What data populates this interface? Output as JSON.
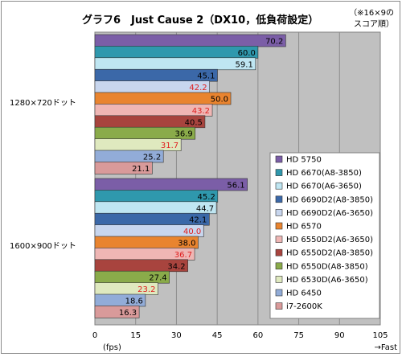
{
  "chart_data": {
    "type": "bar",
    "orientation": "horizontal",
    "title": "グラフ6　Just Cause 2（DX10，低負荷設定）",
    "note_lines": [
      "（※16×9の",
      "スコア順）"
    ],
    "categories": [
      "1280×720ドット",
      "1600×900ドット"
    ],
    "series": [
      {
        "name": "HD 5750",
        "values": [
          70.2,
          56.1
        ],
        "color": "#7b5ea7",
        "highlight": false
      },
      {
        "name": "HD 6670(A8-3850)",
        "values": [
          60.0,
          45.2
        ],
        "color": "#2f98ad",
        "highlight": false
      },
      {
        "name": "HD 6670(A6-3650)",
        "values": [
          59.1,
          44.7
        ],
        "color": "#bfe6f2",
        "highlight": false
      },
      {
        "name": "HD 6690D2(A8-3850)",
        "values": [
          45.1,
          42.1
        ],
        "color": "#3b68a8",
        "highlight": false
      },
      {
        "name": "HD 6690D2(A6-3650)",
        "values": [
          42.2,
          40.0
        ],
        "color": "#c8d6ee",
        "highlight": true
      },
      {
        "name": "HD 6570",
        "values": [
          50.0,
          38.0
        ],
        "color": "#e9842f",
        "highlight": false
      },
      {
        "name": "HD 6550D2(A6-3650)",
        "values": [
          43.2,
          36.7
        ],
        "color": "#efb6b4",
        "highlight": true
      },
      {
        "name": "HD 6550D2(A8-3850)",
        "values": [
          40.5,
          34.2
        ],
        "color": "#a8443e",
        "highlight": false
      },
      {
        "name": "HD 6550D(A8-3850)",
        "values": [
          36.9,
          27.4
        ],
        "color": "#8aab4a",
        "highlight": false
      },
      {
        "name": "HD 6530D(A6-3650)",
        "values": [
          31.7,
          23.2
        ],
        "color": "#dfe9bf",
        "highlight": true
      },
      {
        "name": "HD 6450",
        "values": [
          25.2,
          18.6
        ],
        "color": "#92acd8",
        "highlight": false
      },
      {
        "name": "i7-2600K",
        "values": [
          21.1,
          16.3
        ],
        "color": "#d99a9a",
        "highlight": false
      }
    ],
    "xlim": [
      0,
      105
    ],
    "ticks": [
      0,
      15,
      30,
      45,
      60,
      75,
      90,
      105
    ],
    "tick_labels": [
      "0",
      "15",
      "30",
      "45",
      "60",
      "75",
      "90",
      "105"
    ],
    "xlabel": "(fps)",
    "direction_label": "→Fast",
    "value_labels": [
      [
        "70.2",
        "60.0",
        "59.1",
        "45.1",
        "42.2",
        "50.0",
        "43.2",
        "40.5",
        "36.9",
        "31.7",
        "25.2",
        "21.1"
      ],
      [
        "56.1",
        "45.2",
        "44.7",
        "42.1",
        "40.0",
        "38.0",
        "36.7",
        "34.2",
        "27.4",
        "23.2",
        "18.6",
        "16.3"
      ]
    ],
    "grid": true,
    "legend_position": "bottom-right",
    "highlight_label_color": "#e01e1e",
    "plot_background": "#c0c0c0"
  }
}
